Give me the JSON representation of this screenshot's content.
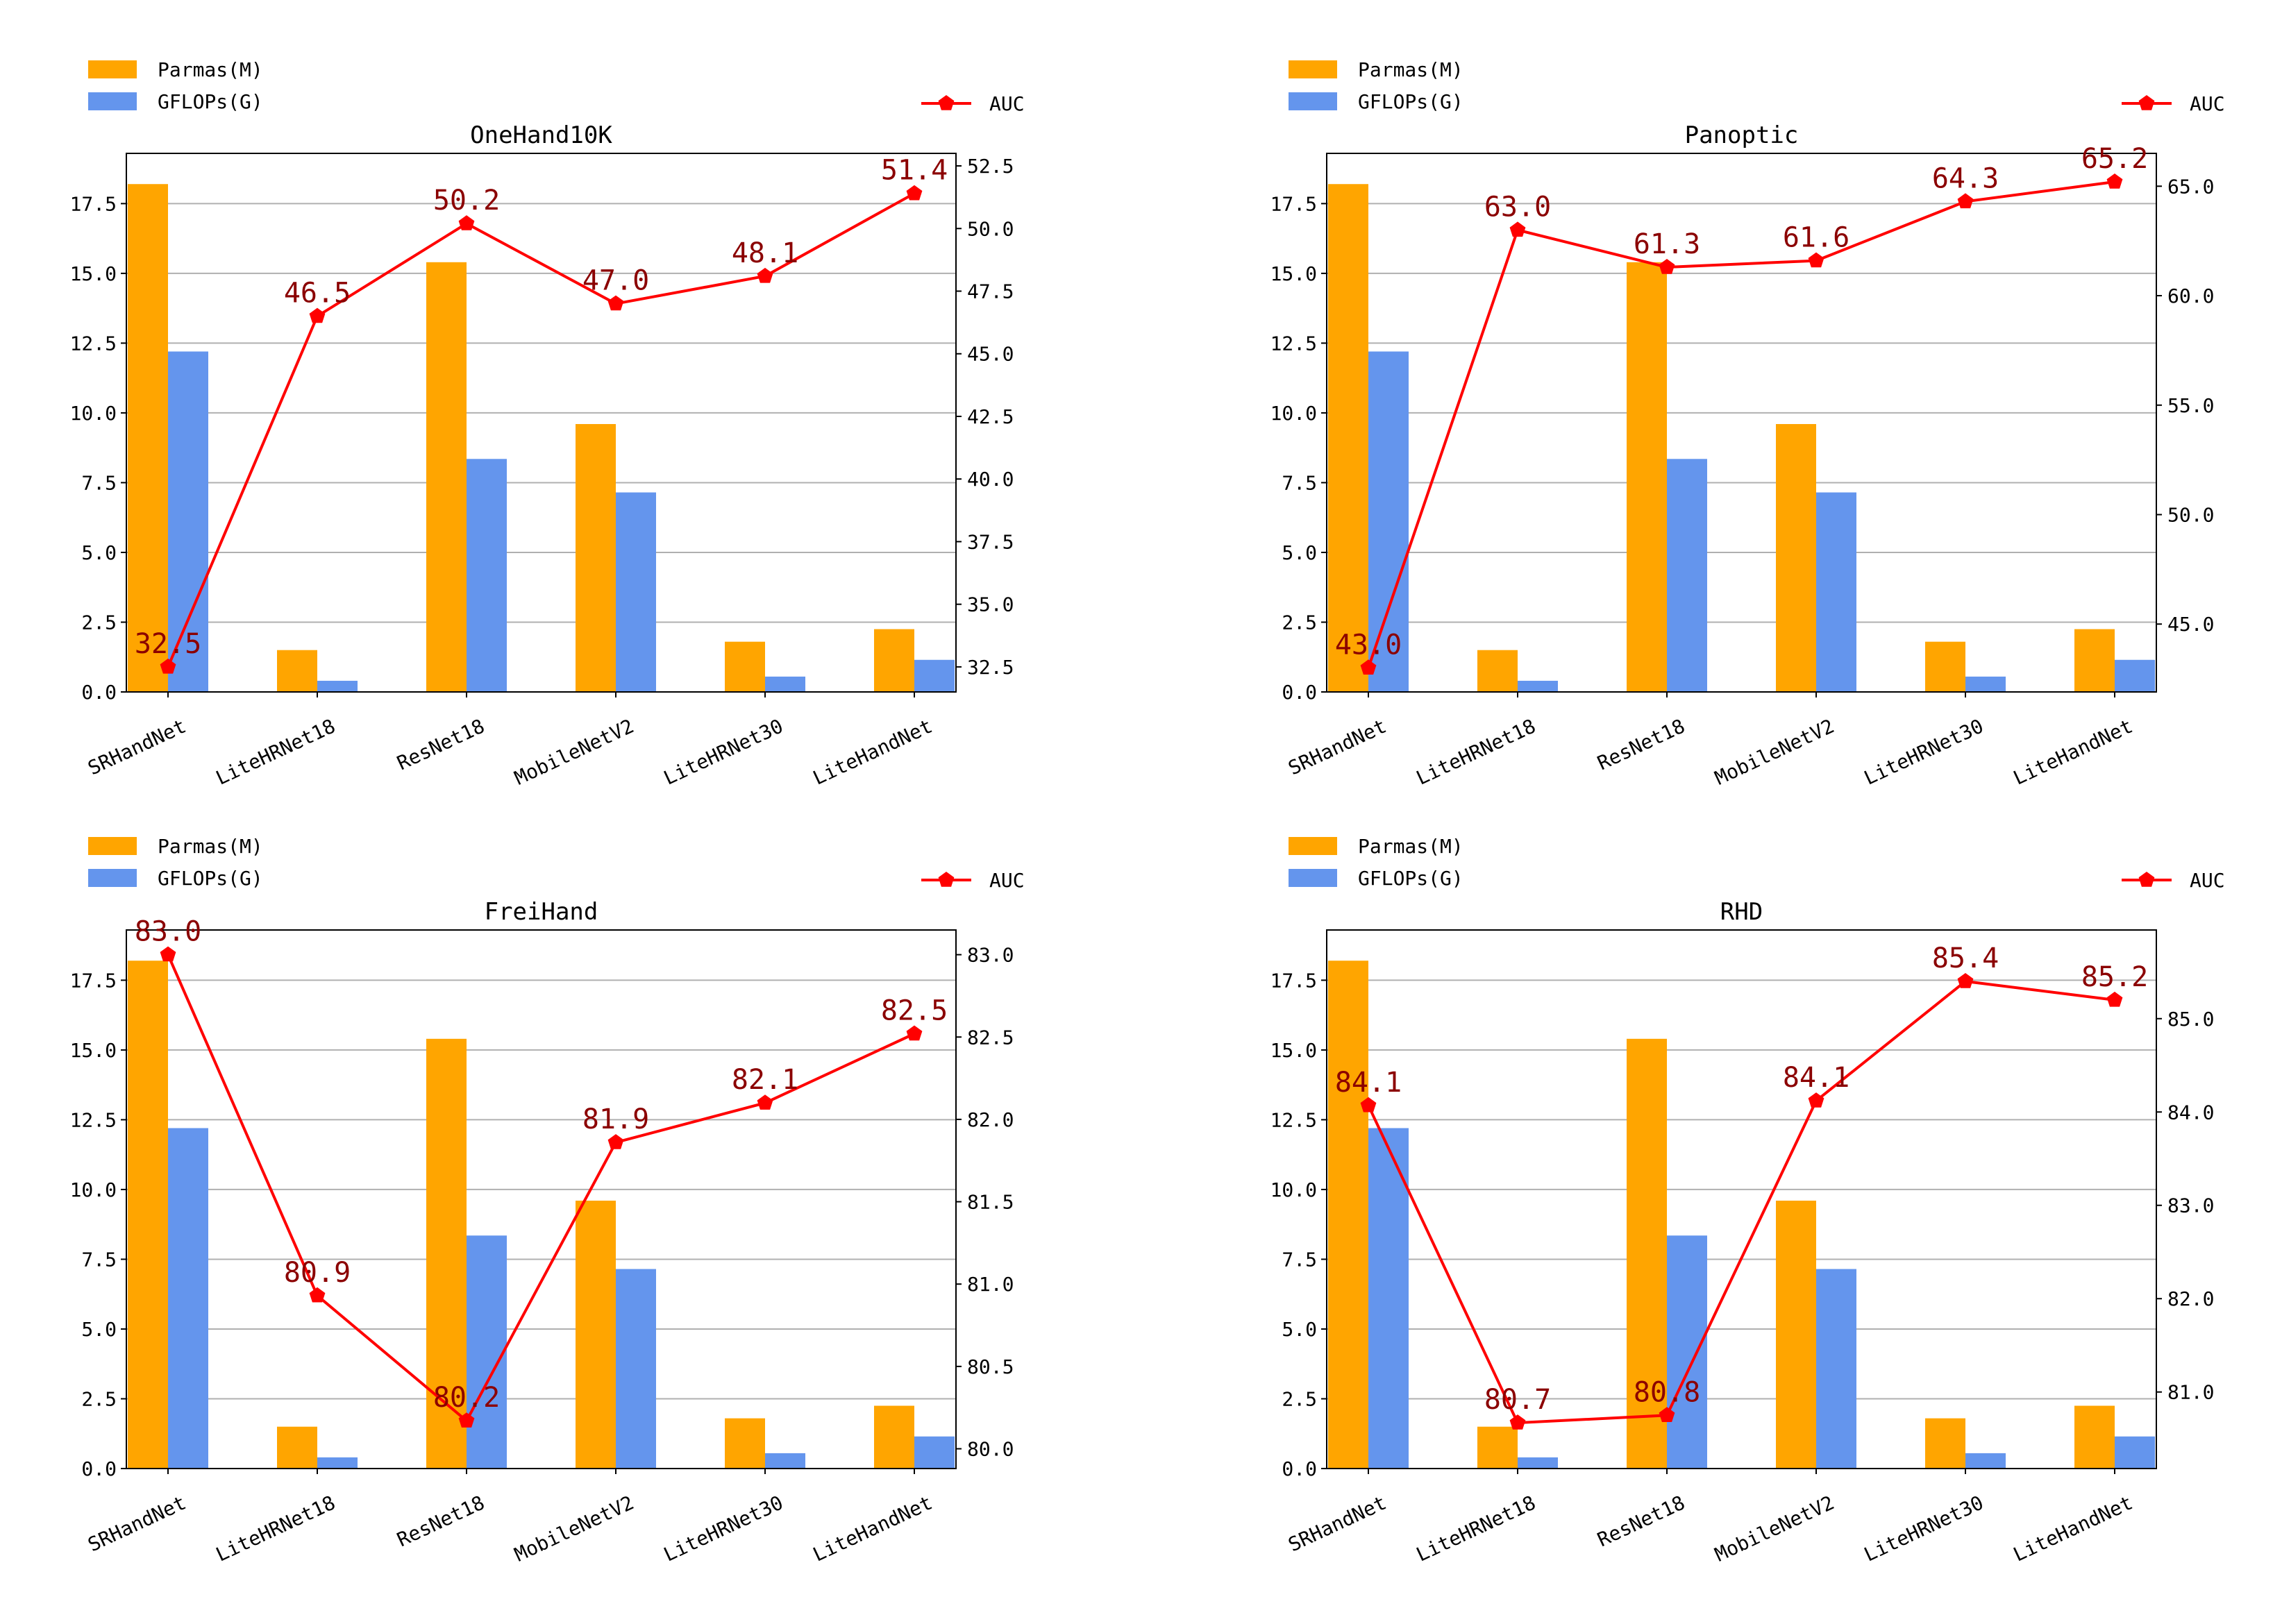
{
  "colors": {
    "params": "#FFA500",
    "gflops": "#6495ED",
    "auc": "#FF0000",
    "auc_label": "#8B0000",
    "grid": "#b0b0b0",
    "axis": "#000000"
  },
  "chart_data": [
    {
      "type": "bar",
      "title": "OneHand10K",
      "categories": [
        "SRHandNet",
        "LiteHRNet18",
        "ResNet18",
        "MobileNetV2",
        "LiteHRNet30",
        "LiteHandNet"
      ],
      "legend": {
        "params": "Parmas(M)",
        "gflops": "GFLOPs(G)",
        "auc": "AUC"
      },
      "series": [
        {
          "name": "Parmas(M)",
          "values": [
            18.2,
            1.5,
            15.4,
            9.6,
            1.8,
            2.25
          ]
        },
        {
          "name": "GFLOPs(G)",
          "values": [
            12.2,
            0.4,
            8.35,
            7.15,
            0.55,
            1.15
          ]
        }
      ],
      "ylim": [
        0,
        19.3
      ],
      "yticks": [
        0,
        2.5,
        5,
        7.5,
        10,
        12.5,
        15,
        17.5
      ],
      "ytick_labels": [
        "0.0",
        "2.5",
        "5.0",
        "7.5",
        "10.0",
        "12.5",
        "15.0",
        "17.5"
      ],
      "line": {
        "name": "AUC",
        "values": [
          32.5,
          46.5,
          50.2,
          47.0,
          48.1,
          51.4
        ],
        "labels": [
          "32.5",
          "46.5",
          "50.2",
          "47.0",
          "48.1",
          "51.4"
        ]
      },
      "y2lim": [
        31.5,
        53.0
      ],
      "y2ticks": [
        32.5,
        35,
        37.5,
        40,
        42.5,
        45,
        47.5,
        50,
        52.5
      ],
      "y2tick_labels": [
        "32.5",
        "35.0",
        "37.5",
        "40.0",
        "42.5",
        "45.0",
        "47.5",
        "50.0",
        "52.5"
      ]
    },
    {
      "type": "bar",
      "title": "Panoptic",
      "categories": [
        "SRHandNet",
        "LiteHRNet18",
        "ResNet18",
        "MobileNetV2",
        "LiteHRNet30",
        "LiteHandNet"
      ],
      "legend": {
        "params": "Parmas(M)",
        "gflops": "GFLOPs(G)",
        "auc": "AUC"
      },
      "series": [
        {
          "name": "Parmas(M)",
          "values": [
            18.2,
            1.5,
            15.4,
            9.6,
            1.8,
            2.25
          ]
        },
        {
          "name": "GFLOPs(G)",
          "values": [
            12.2,
            0.4,
            8.35,
            7.15,
            0.55,
            1.15
          ]
        }
      ],
      "ylim": [
        0,
        19.3
      ],
      "yticks": [
        0,
        2.5,
        5,
        7.5,
        10,
        12.5,
        15,
        17.5
      ],
      "ytick_labels": [
        "0.0",
        "2.5",
        "5.0",
        "7.5",
        "10.0",
        "12.5",
        "15.0",
        "17.5"
      ],
      "line": {
        "name": "AUC",
        "values": [
          43.0,
          63.0,
          61.3,
          61.6,
          64.3,
          65.2
        ],
        "labels": [
          "43.0",
          "63.0",
          "61.3",
          "61.6",
          "64.3",
          "65.2"
        ]
      },
      "y2lim": [
        41.9,
        66.5
      ],
      "y2ticks": [
        45,
        50,
        55,
        60,
        65
      ],
      "y2tick_labels": [
        "45.0",
        "50.0",
        "55.0",
        "60.0",
        "65.0"
      ]
    },
    {
      "type": "bar",
      "title": "FreiHand",
      "categories": [
        "SRHandNet",
        "LiteHRNet18",
        "ResNet18",
        "MobileNetV2",
        "LiteHRNet30",
        "LiteHandNet"
      ],
      "legend": {
        "params": "Parmas(M)",
        "gflops": "GFLOPs(G)",
        "auc": "AUC"
      },
      "series": [
        {
          "name": "Parmas(M)",
          "values": [
            18.2,
            1.5,
            15.4,
            9.6,
            1.8,
            2.25
          ]
        },
        {
          "name": "GFLOPs(G)",
          "values": [
            12.2,
            0.4,
            8.35,
            7.15,
            0.55,
            1.15
          ]
        }
      ],
      "ylim": [
        0,
        19.3
      ],
      "yticks": [
        0,
        2.5,
        5,
        7.5,
        10,
        12.5,
        15,
        17.5
      ],
      "ytick_labels": [
        "0.0",
        "2.5",
        "5.0",
        "7.5",
        "10.0",
        "12.5",
        "15.0",
        "17.5"
      ],
      "line": {
        "name": "AUC",
        "values": [
          83.0,
          80.93,
          80.17,
          81.86,
          82.1,
          82.52
        ],
        "labels": [
          "83.0",
          "80.9",
          "80.2",
          "81.9",
          "82.1",
          "82.5"
        ]
      },
      "y2lim": [
        79.88,
        83.15
      ],
      "y2ticks": [
        80.0,
        80.5,
        81.0,
        81.5,
        82.0,
        82.5,
        83.0
      ],
      "y2tick_labels": [
        "80.0",
        "80.5",
        "81.0",
        "81.5",
        "82.0",
        "82.5",
        "83.0"
      ]
    },
    {
      "type": "bar",
      "title": "RHD",
      "categories": [
        "SRHandNet",
        "LiteHRNet18",
        "ResNet18",
        "MobileNetV2",
        "LiteHRNet30",
        "LiteHandNet"
      ],
      "legend": {
        "params": "Parmas(M)",
        "gflops": "GFLOPs(G)",
        "auc": "AUC"
      },
      "series": [
        {
          "name": "Parmas(M)",
          "values": [
            18.2,
            1.5,
            15.4,
            9.6,
            1.8,
            2.25
          ]
        },
        {
          "name": "GFLOPs(G)",
          "values": [
            12.2,
            0.4,
            8.35,
            7.15,
            0.55,
            1.15
          ]
        }
      ],
      "ylim": [
        0,
        19.3
      ],
      "yticks": [
        0,
        2.5,
        5,
        7.5,
        10,
        12.5,
        15,
        17.5
      ],
      "ytick_labels": [
        "0.0",
        "2.5",
        "5.0",
        "7.5",
        "10.0",
        "12.5",
        "15.0",
        "17.5"
      ],
      "line": {
        "name": "AUC",
        "values": [
          84.07,
          80.67,
          80.75,
          84.12,
          85.4,
          85.2
        ],
        "labels": [
          "84.1",
          "80.7",
          "80.8",
          "84.1",
          "85.4",
          "85.2"
        ]
      },
      "y2lim": [
        80.18,
        85.95
      ],
      "y2ticks": [
        81,
        82,
        83,
        84,
        85
      ],
      "y2tick_labels": [
        "81.0",
        "82.0",
        "83.0",
        "84.0",
        "85.0"
      ]
    }
  ]
}
